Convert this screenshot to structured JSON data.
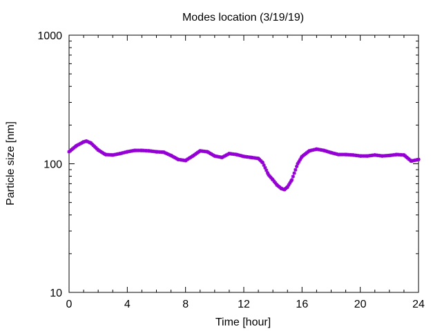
{
  "chart_data": {
    "type": "scatter",
    "title": "Modes location (3/19/19)",
    "xlabel": "Time [hour]",
    "ylabel": "Particle size [nm]",
    "xlim": [
      0,
      24
    ],
    "ylim": [
      10,
      1000
    ],
    "yscale": "log",
    "x_ticks": [
      {
        "value": 0,
        "label": "0"
      },
      {
        "value": 4,
        "label": "4"
      },
      {
        "value": 8,
        "label": "8"
      },
      {
        "value": 12,
        "label": "12"
      },
      {
        "value": 16,
        "label": "16"
      },
      {
        "value": 20,
        "label": "20"
      },
      {
        "value": 24,
        "label": "24"
      }
    ],
    "y_ticks": [
      {
        "value": 10,
        "label": "10"
      },
      {
        "value": 100,
        "label": "100"
      },
      {
        "value": 1000,
        "label": "1000"
      }
    ],
    "grid": false,
    "marker_color": "#9400d3",
    "series": [
      {
        "x": [
          0,
          0.5,
          1,
          1.2,
          1.5,
          2,
          2.5,
          3,
          3.5,
          4,
          4.5,
          5,
          5.5,
          6,
          6.5,
          7,
          7.5,
          8,
          8.5,
          9,
          9.5,
          10,
          10.5,
          11,
          11.5,
          12,
          12.5,
          13,
          13.3,
          13.7,
          14,
          14.3,
          14.6,
          14.8,
          15,
          15.3,
          15.7,
          16,
          16.5,
          17,
          17.5,
          18,
          18.5,
          19,
          19.5,
          20,
          20.5,
          21,
          21.5,
          22,
          22.5,
          23,
          23.5,
          24
        ],
        "y": [
          124,
          138,
          148,
          150,
          145,
          128,
          118,
          117,
          120,
          124,
          127,
          127,
          126,
          124,
          123,
          116,
          108,
          106,
          115,
          126,
          124,
          115,
          112,
          120,
          118,
          114,
          112,
          110,
          102,
          82,
          75,
          68,
          64,
          63,
          66,
          75,
          100,
          114,
          126,
          130,
          127,
          122,
          118,
          118,
          117,
          115,
          115,
          117,
          115,
          116,
          118,
          117,
          105,
          108
        ]
      }
    ]
  }
}
